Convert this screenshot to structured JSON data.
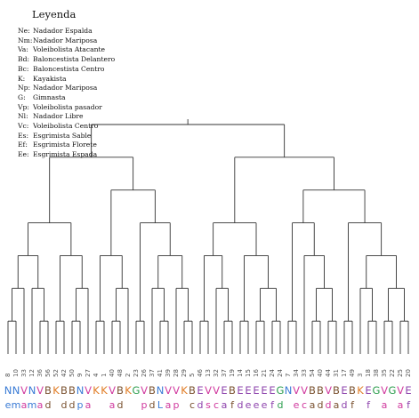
{
  "legend": {
    "title": "Leyenda",
    "entries": [
      {
        "code": "Ne:",
        "label": "Nadador Espalda"
      },
      {
        "code": "Nm:",
        "label": "Nadador Mariposa"
      },
      {
        "code": "Va:",
        "label": "Voleibolista Atacante"
      },
      {
        "code": "Bd:",
        "label": "Baloncestista Delantero"
      },
      {
        "code": "Bc:",
        "label": "Baloncestista Centro"
      },
      {
        "code": "K:",
        "label": "Kayakista"
      },
      {
        "code": "Np:",
        "label": "Nadador Mariposa"
      },
      {
        "code": "G:",
        "label": "Gimnasta"
      },
      {
        "code": "Vp:",
        "label": "Voleibolista pasador"
      },
      {
        "code": "Nl:",
        "label": "Nadador Libre"
      },
      {
        "code": "Vc:",
        "label": "Voleibolista Centro"
      },
      {
        "code": "Es:",
        "label": "Esgrimista Sable"
      },
      {
        "code": "Ef:",
        "label": "Esgrimista Florete"
      },
      {
        "code": "Ee:",
        "label": "Esgrimista Espada"
      }
    ]
  },
  "colors": {
    "N": "#3a7bd5",
    "V": "#d0399e",
    "B": "#7a5230",
    "K": "#e07b22",
    "G": "#2e9e4f",
    "E": "#8e44ad",
    "line": "#333333",
    "number": "#555555",
    "legend_text": "#111111"
  },
  "leaves": [
    {
      "id": "8",
      "cat": "N",
      "sub": "e"
    },
    {
      "id": "10",
      "cat": "N",
      "sub": "m"
    },
    {
      "id": "33",
      "cat": "V",
      "sub": "a"
    },
    {
      "id": "12",
      "cat": "N",
      "sub": "m"
    },
    {
      "id": "36",
      "cat": "V",
      "sub": "a"
    },
    {
      "id": "56",
      "cat": "B",
      "sub": "d"
    },
    {
      "id": "52",
      "cat": "K",
      "sub": ""
    },
    {
      "id": "42",
      "cat": "B",
      "sub": "d"
    },
    {
      "id": "50",
      "cat": "B",
      "sub": "d"
    },
    {
      "id": "9",
      "cat": "N",
      "sub": "p"
    },
    {
      "id": "27",
      "cat": "V",
      "sub": "a"
    },
    {
      "id": "4",
      "cat": "K",
      "sub": ""
    },
    {
      "id": "1",
      "cat": "K",
      "sub": ""
    },
    {
      "id": "40",
      "cat": "V",
      "sub": "a"
    },
    {
      "id": "48",
      "cat": "B",
      "sub": "d"
    },
    {
      "id": "2",
      "cat": "K",
      "sub": ""
    },
    {
      "id": "23",
      "cat": "G",
      "sub": ""
    },
    {
      "id": "26",
      "cat": "V",
      "sub": "p"
    },
    {
      "id": "37",
      "cat": "B",
      "sub": "d"
    },
    {
      "id": "41",
      "cat": "N",
      "sub": "L"
    },
    {
      "id": "39",
      "cat": "V",
      "sub": "a"
    },
    {
      "id": "28",
      "cat": "V",
      "sub": "p"
    },
    {
      "id": "29",
      "cat": "K",
      "sub": ""
    },
    {
      "id": "5",
      "cat": "B",
      "sub": "c"
    },
    {
      "id": "46",
      "cat": "E",
      "sub": "d"
    },
    {
      "id": "13",
      "cat": "V",
      "sub": "s"
    },
    {
      "id": "32",
      "cat": "V",
      "sub": "c"
    },
    {
      "id": "37",
      "cat": "E",
      "sub": "a"
    },
    {
      "id": "19",
      "cat": "B",
      "sub": "f"
    },
    {
      "id": "14",
      "cat": "E",
      "sub": "d"
    },
    {
      "id": "15",
      "cat": "E",
      "sub": "e"
    },
    {
      "id": "16",
      "cat": "E",
      "sub": "e"
    },
    {
      "id": "21",
      "cat": "E",
      "sub": "e"
    },
    {
      "id": "24",
      "cat": "E",
      "sub": "f"
    },
    {
      "id": "24",
      "cat": "G",
      "sub": "d"
    },
    {
      "id": "7",
      "cat": "N",
      "sub": ""
    },
    {
      "id": "34",
      "cat": "V",
      "sub": "e"
    },
    {
      "id": "33",
      "cat": "V",
      "sub": "c"
    },
    {
      "id": "54",
      "cat": "B",
      "sub": "a"
    },
    {
      "id": "40",
      "cat": "B",
      "sub": "d"
    },
    {
      "id": "44",
      "cat": "V",
      "sub": "d"
    },
    {
      "id": "31",
      "cat": "B",
      "sub": "a"
    },
    {
      "id": "17",
      "cat": "E",
      "sub": "d"
    },
    {
      "id": "49",
      "cat": "B",
      "sub": "f"
    },
    {
      "id": "3",
      "cat": "K",
      "sub": ""
    },
    {
      "id": "18",
      "cat": "E",
      "sub": "f"
    },
    {
      "id": "38",
      "cat": "G",
      "sub": ""
    },
    {
      "id": "35",
      "cat": "V",
      "sub": "a"
    },
    {
      "id": "22",
      "cat": "G",
      "sub": ""
    },
    {
      "id": "25",
      "cat": "V",
      "sub": "a"
    },
    {
      "id": "20",
      "cat": "E",
      "sub": "f"
    }
  ],
  "tree": [
    [
      [
        [
          [
            [
              0,
              1
            ],
            2
          ],
          [
            3,
            [
              4,
              5
            ]
          ]
        ],
        [
          [
            6,
            7
          ],
          [
            [
              8,
              9
            ],
            10
          ]
        ]
      ],
      [
        [
          [
            11,
            12
          ],
          [
            [
              13,
              14
            ],
            15
          ]
        ],
        [
          [
            16,
            17
          ],
          [
            [
              18,
              [
                19,
                20
              ]
            ],
            [
              21,
              [
                22,
                23
              ]
            ]
          ]
        ]
      ]
    ],
    [
      [
        [
          [
            24,
            25
          ],
          [
            26,
            [
              27,
              28
            ]
          ]
        ],
        [
          [
            29,
            30
          ],
          [
            [
              31,
              32
            ],
            [
              33,
              34
            ]
          ]
        ]
      ],
      [
        [
          [
            35,
            36
          ],
          [
            37,
            [
              [
                38,
                39
              ],
              [
                40,
                41
              ]
            ]
          ]
        ],
        [
          [
            42,
            43
          ],
          [
            [
              44,
              [
                45,
                46
              ]
            ],
            [
              [
                47,
                48
              ],
              [
                49,
                50
              ]
            ]
          ]
        ]
      ]
    ]
  ]
}
